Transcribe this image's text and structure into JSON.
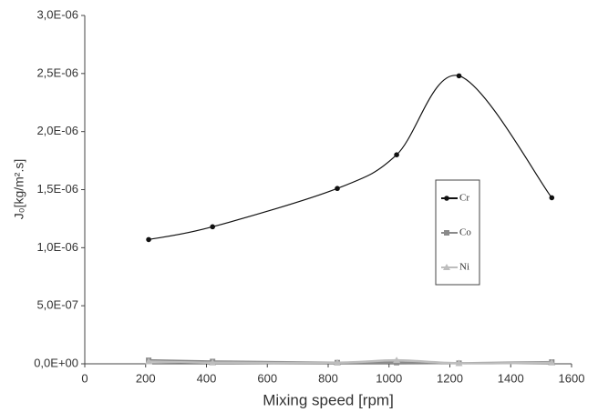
{
  "chart_data": {
    "type": "line",
    "y_label": "J₀[kg/m².s]",
    "x_label": "Mixing speed [rpm]",
    "x": [
      210,
      420,
      830,
      1025,
      1230,
      1535
    ],
    "series": [
      {
        "name": "Cr",
        "color": "#111111",
        "marker": "circle",
        "values": [
          1.07e-06,
          1.18e-06,
          1.51e-06,
          1.8e-06,
          2.48e-06,
          1.43e-06
        ]
      },
      {
        "name": "Co",
        "color": "#8a8a8a",
        "marker": "square",
        "values": [
          3e-08,
          2e-08,
          1e-08,
          1e-08,
          5e-09,
          1.5e-08
        ]
      },
      {
        "name": "Ni",
        "color": "#bdbdbd",
        "marker": "triangle",
        "values": [
          2e-08,
          1e-08,
          1e-08,
          3e-08,
          5e-09,
          1e-08
        ]
      }
    ],
    "smooth": true,
    "xlim": [
      0,
      1600
    ],
    "xticks": [
      0,
      200,
      400,
      600,
      800,
      1000,
      1200,
      1400,
      1600
    ],
    "ylim": [
      0,
      3e-06
    ],
    "yticks": [
      {
        "value": 0,
        "label": "0,0E+00"
      },
      {
        "value": 5e-07,
        "label": "5,0E-07"
      },
      {
        "value": 1e-06,
        "label": "1,0E-06"
      },
      {
        "value": 1.5e-06,
        "label": "1,5E-06"
      },
      {
        "value": 2e-06,
        "label": "2,0E-06"
      },
      {
        "value": 2.5e-06,
        "label": "2,5E-06"
      },
      {
        "value": 3e-06,
        "label": "3,0E-06"
      }
    ],
    "grid": false
  }
}
